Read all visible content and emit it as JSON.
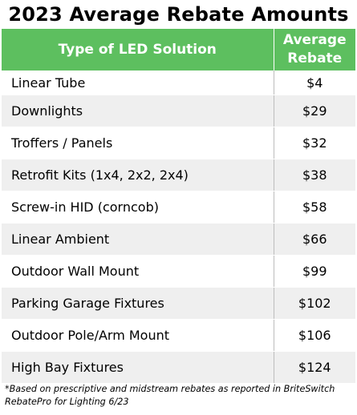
{
  "title": "2023 Average Rebate Amounts",
  "table": {
    "header": {
      "solution": "Type of LED Solution",
      "average_line1": "Average",
      "average_line2": "Rebate"
    },
    "rows": [
      {
        "type": "Linear Tube",
        "rebate": "$4"
      },
      {
        "type": "Downlights",
        "rebate": "$29"
      },
      {
        "type": "Troffers / Panels",
        "rebate": "$32"
      },
      {
        "type": "Retrofit Kits (1x4, 2x2, 2x4)",
        "rebate": "$38"
      },
      {
        "type": "Screw-in HID (corncob)",
        "rebate": "$58"
      },
      {
        "type": "Linear Ambient",
        "rebate": "$66"
      },
      {
        "type": "Outdoor Wall Mount",
        "rebate": "$99"
      },
      {
        "type": "Parking Garage Fixtures",
        "rebate": "$102"
      },
      {
        "type": "Outdoor Pole/Arm Mount",
        "rebate": "$106"
      },
      {
        "type": "High Bay Fixtures",
        "rebate": "$124"
      }
    ]
  },
  "footnote": "*Based on prescriptive and midstream rebates as reported in BriteSwitch RebatePro for Lighting 6/23",
  "colors": {
    "header_bg": "#5dbf5f",
    "header_text": "#ffffff",
    "row_alt_bg": "#efefef"
  }
}
